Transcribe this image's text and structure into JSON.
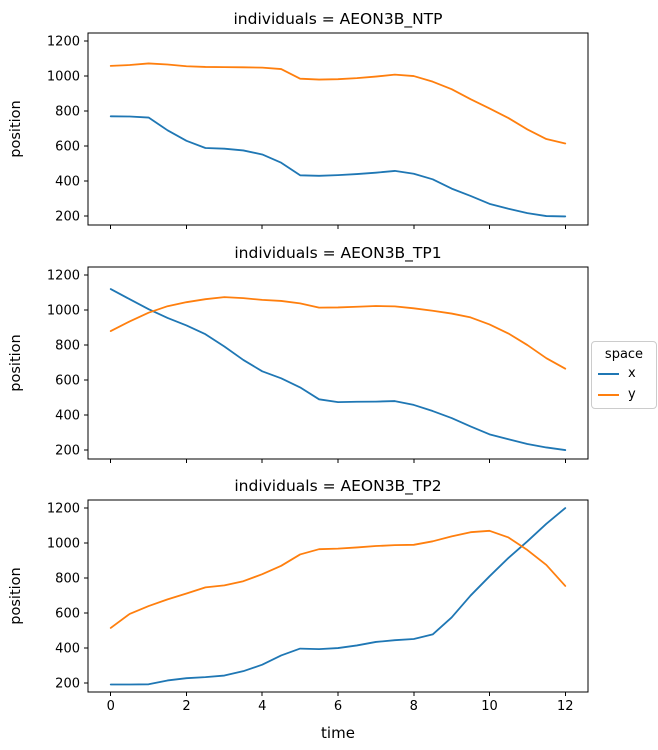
{
  "figure": {
    "background": "#ffffff",
    "xlabel": "time",
    "ylabel": "position"
  },
  "legend": {
    "title": "space",
    "position": "right-of-middle-subplot",
    "entries": [
      {
        "label": "x",
        "color": "#1f77b4"
      },
      {
        "label": "y",
        "color": "#ff7f0e"
      }
    ]
  },
  "chart_data": [
    {
      "type": "line",
      "title": "individuals = AEON3B_NTP",
      "xlabel": "",
      "ylabel": "position",
      "x": [
        0,
        0.5,
        1,
        1.5,
        2,
        2.5,
        3,
        3.5,
        4,
        4.5,
        5,
        5.5,
        6,
        6.5,
        7,
        7.5,
        8,
        8.5,
        9,
        9.5,
        10,
        10.5,
        11,
        11.5,
        12
      ],
      "series": [
        {
          "name": "x",
          "color": "#1f77b4",
          "values": [
            770,
            769,
            763,
            690,
            630,
            589,
            585,
            575,
            552,
            505,
            433,
            430,
            434,
            440,
            448,
            458,
            442,
            410,
            357,
            315,
            270,
            242,
            217,
            200,
            198
          ]
        },
        {
          "name": "y",
          "color": "#ff7f0e",
          "values": [
            1058,
            1063,
            1072,
            1066,
            1056,
            1052,
            1051,
            1050,
            1048,
            1040,
            985,
            980,
            982,
            988,
            997,
            1008,
            1000,
            968,
            925,
            868,
            815,
            760,
            695,
            640,
            615
          ]
        }
      ],
      "xlim": [
        -0.6,
        12.6
      ],
      "ylim": [
        149,
        1246
      ],
      "xticks": [
        0,
        2,
        4,
        6,
        8,
        10,
        12
      ],
      "yticks": [
        200,
        400,
        600,
        800,
        1000,
        1200
      ],
      "show_xticklabels": false,
      "grid": false
    },
    {
      "type": "line",
      "title": "individuals = AEON3B_TP1",
      "xlabel": "",
      "ylabel": "position",
      "x": [
        0,
        0.5,
        1,
        1.5,
        2,
        2.5,
        3,
        3.5,
        4,
        4.5,
        5,
        5.5,
        6,
        6.5,
        7,
        7.5,
        8,
        8.5,
        9,
        9.5,
        10,
        10.5,
        11,
        11.5,
        12
      ],
      "series": [
        {
          "name": "x",
          "color": "#1f77b4",
          "values": [
            1120,
            1062,
            1005,
            955,
            912,
            862,
            792,
            715,
            650,
            610,
            558,
            490,
            474,
            476,
            477,
            480,
            458,
            423,
            383,
            335,
            290,
            262,
            235,
            215,
            200
          ]
        },
        {
          "name": "y",
          "color": "#ff7f0e",
          "values": [
            880,
            935,
            985,
            1022,
            1045,
            1062,
            1074,
            1068,
            1058,
            1052,
            1038,
            1014,
            1015,
            1019,
            1023,
            1021,
            1010,
            996,
            980,
            958,
            918,
            866,
            800,
            725,
            665
          ]
        }
      ],
      "xlim": [
        -0.6,
        12.6
      ],
      "ylim": [
        149,
        1246
      ],
      "xticks": [
        0,
        2,
        4,
        6,
        8,
        10,
        12
      ],
      "yticks": [
        200,
        400,
        600,
        800,
        1000,
        1200
      ],
      "show_xticklabels": false,
      "grid": false
    },
    {
      "type": "line",
      "title": "individuals = AEON3B_TP2",
      "xlabel": "time",
      "ylabel": "position",
      "x": [
        0,
        0.5,
        1,
        1.5,
        2,
        2.5,
        3,
        3.5,
        4,
        4.5,
        5,
        5.5,
        6,
        6.5,
        7,
        7.5,
        8,
        8.5,
        9,
        9.5,
        10,
        10.5,
        11,
        11.5,
        12
      ],
      "series": [
        {
          "name": "x",
          "color": "#1f77b4",
          "values": [
            192,
            192,
            193,
            215,
            228,
            234,
            243,
            268,
            305,
            358,
            397,
            394,
            400,
            415,
            435,
            445,
            452,
            478,
            575,
            700,
            810,
            915,
            1010,
            1110,
            1200
          ]
        },
        {
          "name": "y",
          "color": "#ff7f0e",
          "values": [
            515,
            595,
            640,
            678,
            712,
            747,
            758,
            782,
            822,
            870,
            935,
            965,
            968,
            975,
            983,
            988,
            990,
            1010,
            1038,
            1062,
            1070,
            1032,
            960,
            875,
            755
          ]
        }
      ],
      "xlim": [
        -0.6,
        12.6
      ],
      "ylim": [
        149,
        1246
      ],
      "xticks": [
        0,
        2,
        4,
        6,
        8,
        10,
        12
      ],
      "yticks": [
        200,
        400,
        600,
        800,
        1000,
        1200
      ],
      "show_xticklabels": true,
      "grid": false
    }
  ]
}
